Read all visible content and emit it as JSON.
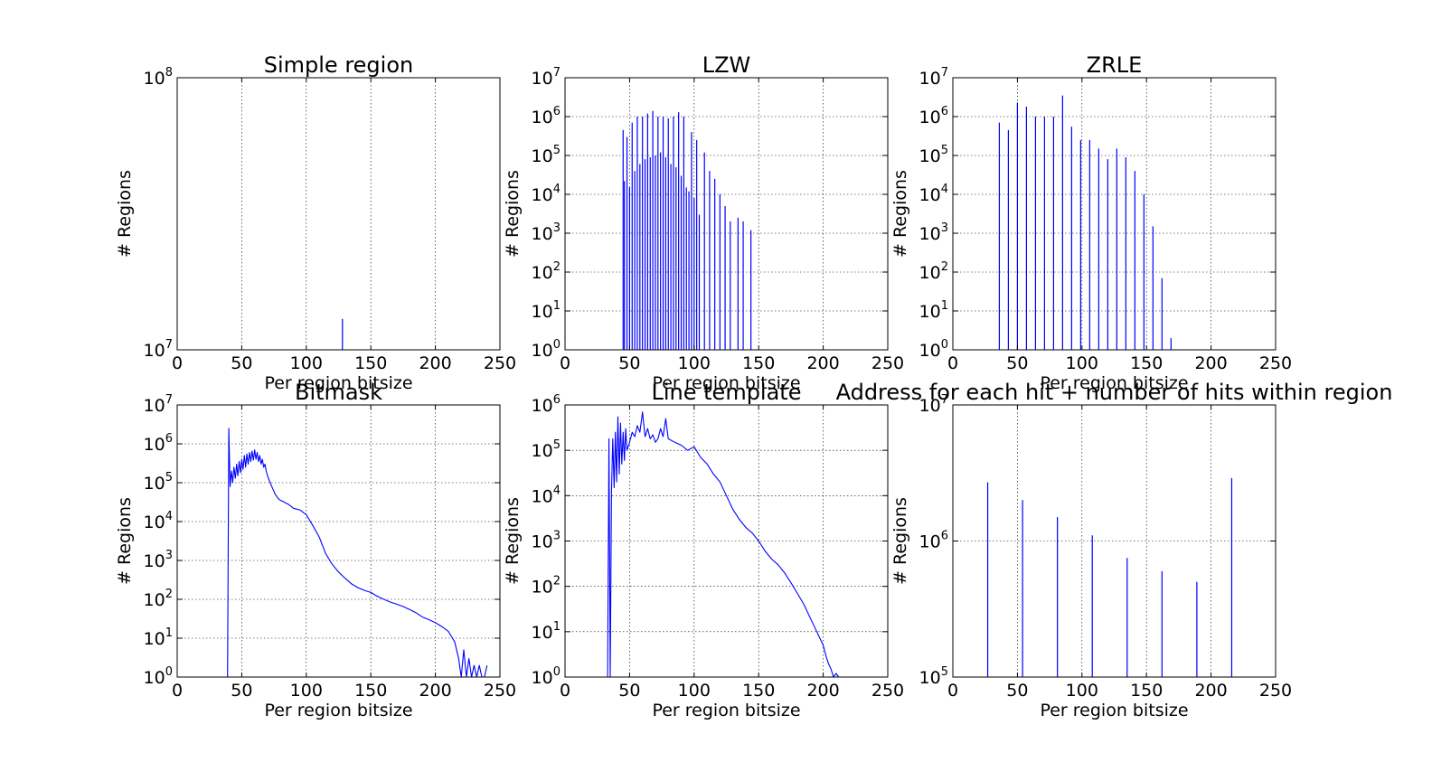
{
  "chart_data": [
    {
      "type": "bar",
      "title": "Simple region",
      "xlabel": "Per region bitsize",
      "ylabel": "# Regions",
      "xlim": [
        0,
        250
      ],
      "ylim": [
        10000000,
        100000000
      ],
      "yscale": "log",
      "xticks": [
        0,
        50,
        100,
        150,
        200,
        250
      ],
      "yticks": [
        10000000,
        100000000
      ],
      "ytick_labels": [
        {
          "base": "10",
          "exp": "7"
        },
        {
          "base": "10",
          "exp": "8"
        }
      ],
      "grid": true,
      "color": "#0000ff",
      "x": [
        128
      ],
      "y": [
        13000000
      ]
    },
    {
      "type": "bar",
      "title": "LZW",
      "xlabel": "Per region bitsize",
      "ylabel": "# Regions",
      "xlim": [
        0,
        250
      ],
      "ylim": [
        1,
        10000000
      ],
      "yscale": "log",
      "xticks": [
        0,
        50,
        100,
        150,
        200,
        250
      ],
      "yticks": [
        1,
        10,
        100,
        1000,
        10000,
        100000,
        1000000,
        10000000
      ],
      "ytick_labels": [
        {
          "base": "10",
          "exp": "0"
        },
        {
          "base": "10",
          "exp": "1"
        },
        {
          "base": "10",
          "exp": "2"
        },
        {
          "base": "10",
          "exp": "3"
        },
        {
          "base": "10",
          "exp": "4"
        },
        {
          "base": "10",
          "exp": "5"
        },
        {
          "base": "10",
          "exp": "6"
        },
        {
          "base": "10",
          "exp": "7"
        }
      ],
      "grid": true,
      "color": "#0000ff",
      "x": [
        45,
        46,
        48,
        50,
        52,
        54,
        56,
        58,
        60,
        62,
        64,
        66,
        68,
        70,
        72,
        74,
        76,
        78,
        80,
        82,
        84,
        86,
        88,
        90,
        92,
        94,
        96,
        98,
        100,
        102,
        104,
        108,
        112,
        116,
        120,
        124,
        128,
        134,
        138,
        144
      ],
      "y": [
        450000,
        22000,
        300000,
        15000,
        700000,
        40000,
        1000000,
        60000,
        1000000,
        80000,
        1200000,
        90000,
        1400000,
        100000,
        1000000,
        120000,
        1000000,
        90000,
        900000,
        60000,
        1000000,
        50000,
        1300000,
        30000,
        1000000,
        15000,
        12000,
        400000,
        8000,
        250000,
        3000,
        120000,
        40000,
        25000,
        10000,
        5000,
        2000,
        2500,
        2000,
        1200
      ]
    },
    {
      "type": "bar",
      "title": "ZRLE",
      "xlabel": "Per region bitsize",
      "ylabel": "# Regions",
      "xlim": [
        0,
        250
      ],
      "ylim": [
        1,
        10000000
      ],
      "yscale": "log",
      "xticks": [
        0,
        50,
        100,
        150,
        200,
        250
      ],
      "yticks": [
        1,
        10,
        100,
        1000,
        10000,
        100000,
        1000000,
        10000000
      ],
      "ytick_labels": [
        {
          "base": "10",
          "exp": "0"
        },
        {
          "base": "10",
          "exp": "1"
        },
        {
          "base": "10",
          "exp": "2"
        },
        {
          "base": "10",
          "exp": "3"
        },
        {
          "base": "10",
          "exp": "4"
        },
        {
          "base": "10",
          "exp": "5"
        },
        {
          "base": "10",
          "exp": "6"
        },
        {
          "base": "10",
          "exp": "7"
        }
      ],
      "grid": true,
      "color": "#0000ff",
      "x": [
        36,
        43,
        50,
        57,
        64,
        71,
        78,
        85,
        92,
        99,
        106,
        113,
        120,
        127,
        134,
        141,
        148,
        155,
        162,
        169
      ],
      "y": [
        700000,
        450000,
        2300000,
        1800000,
        1000000,
        1000000,
        1000000,
        3500000,
        550000,
        250000,
        250000,
        150000,
        80000,
        150000,
        90000,
        40000,
        10000,
        1500,
        70,
        2
      ]
    },
    {
      "type": "line",
      "title": "Bitmask",
      "xlabel": "Per region bitsize",
      "ylabel": "# Regions",
      "xlim": [
        0,
        250
      ],
      "ylim": [
        1,
        10000000
      ],
      "yscale": "log",
      "xticks": [
        0,
        50,
        100,
        150,
        200,
        250
      ],
      "yticks": [
        1,
        10,
        100,
        1000,
        10000,
        100000,
        1000000,
        10000000
      ],
      "ytick_labels": [
        {
          "base": "10",
          "exp": "0"
        },
        {
          "base": "10",
          "exp": "1"
        },
        {
          "base": "10",
          "exp": "2"
        },
        {
          "base": "10",
          "exp": "3"
        },
        {
          "base": "10",
          "exp": "4"
        },
        {
          "base": "10",
          "exp": "5"
        },
        {
          "base": "10",
          "exp": "6"
        },
        {
          "base": "10",
          "exp": "7"
        }
      ],
      "grid": true,
      "color": "#0000ff",
      "x": [
        39,
        40,
        41,
        42,
        43,
        44,
        45,
        46,
        47,
        48,
        49,
        50,
        51,
        52,
        53,
        54,
        55,
        56,
        57,
        58,
        59,
        60,
        61,
        62,
        63,
        64,
        65,
        66,
        67,
        68,
        69,
        70,
        72,
        74,
        76,
        78,
        80,
        82,
        84,
        86,
        88,
        90,
        95,
        100,
        105,
        110,
        115,
        120,
        125,
        130,
        135,
        140,
        145,
        150,
        155,
        160,
        165,
        170,
        175,
        180,
        185,
        190,
        195,
        200,
        205,
        210,
        215,
        218,
        220,
        222,
        224,
        226,
        228,
        230,
        232,
        234,
        236,
        238,
        240
      ],
      "y": [
        1,
        2500000,
        80000,
        200000,
        100000,
        250000,
        130000,
        300000,
        150000,
        350000,
        180000,
        400000,
        220000,
        500000,
        250000,
        550000,
        300000,
        600000,
        350000,
        650000,
        380000,
        700000,
        400000,
        600000,
        350000,
        500000,
        300000,
        400000,
        250000,
        300000,
        200000,
        150000,
        100000,
        70000,
        50000,
        40000,
        35000,
        33000,
        30000,
        28000,
        25000,
        22000,
        20000,
        15000,
        8000,
        4000,
        1500,
        800,
        500,
        350,
        250,
        200,
        170,
        150,
        120,
        100,
        85,
        75,
        65,
        55,
        45,
        35,
        30,
        25,
        20,
        15,
        8,
        3,
        1,
        5,
        1,
        3,
        1,
        2,
        1,
        2,
        1,
        1,
        2
      ]
    },
    {
      "type": "line",
      "title": "Line template",
      "xlabel": "Per region bitsize",
      "ylabel": "# Regions",
      "xlim": [
        0,
        250
      ],
      "ylim": [
        1,
        1000000
      ],
      "yscale": "log",
      "xticks": [
        0,
        50,
        100,
        150,
        200,
        250
      ],
      "yticks": [
        1,
        10,
        100,
        1000,
        10000,
        100000,
        1000000
      ],
      "ytick_labels": [
        {
          "base": "10",
          "exp": "0"
        },
        {
          "base": "10",
          "exp": "1"
        },
        {
          "base": "10",
          "exp": "2"
        },
        {
          "base": "10",
          "exp": "3"
        },
        {
          "base": "10",
          "exp": "4"
        },
        {
          "base": "10",
          "exp": "5"
        },
        {
          "base": "10",
          "exp": "6"
        }
      ],
      "grid": true,
      "color": "#0000ff",
      "x": [
        33,
        34,
        35,
        36,
        37,
        38,
        39,
        40,
        41,
        42,
        43,
        44,
        45,
        46,
        47,
        48,
        50,
        52,
        54,
        56,
        58,
        60,
        62,
        64,
        66,
        68,
        70,
        72,
        74,
        76,
        78,
        80,
        85,
        90,
        95,
        100,
        105,
        110,
        115,
        120,
        125,
        130,
        135,
        140,
        145,
        150,
        155,
        160,
        165,
        170,
        175,
        180,
        185,
        190,
        195,
        200,
        202,
        204,
        206,
        208,
        210,
        212
      ],
      "y": [
        1,
        180000,
        1,
        12000,
        180000,
        15000,
        250000,
        20000,
        550000,
        30000,
        400000,
        50000,
        250000,
        60000,
        300000,
        100000,
        150000,
        250000,
        200000,
        350000,
        250000,
        700000,
        200000,
        300000,
        180000,
        220000,
        150000,
        180000,
        300000,
        200000,
        500000,
        180000,
        150000,
        130000,
        100000,
        120000,
        70000,
        50000,
        30000,
        20000,
        10000,
        5000,
        3000,
        2000,
        1500,
        1000,
        600,
        400,
        300,
        200,
        120,
        70,
        40,
        20,
        10,
        5,
        3,
        2,
        1.5,
        1,
        1.2,
        1
      ]
    },
    {
      "type": "bar",
      "title": "Address for each hit + number of hits within region",
      "xlabel": "Per region bitsize",
      "ylabel": "# Regions",
      "xlim": [
        0,
        250
      ],
      "ylim": [
        100000,
        10000000
      ],
      "yscale": "log",
      "xticks": [
        0,
        50,
        100,
        150,
        200,
        250
      ],
      "yticks": [
        100000,
        1000000,
        10000000
      ],
      "ytick_labels": [
        {
          "base": "10",
          "exp": "5"
        },
        {
          "base": "10",
          "exp": "6"
        },
        {
          "base": "10",
          "exp": "7"
        }
      ],
      "grid": true,
      "color": "#0000ff",
      "x": [
        27,
        54,
        81,
        108,
        135,
        162,
        189,
        216
      ],
      "y": [
        2700000,
        2000000,
        1500000,
        1100000,
        750000,
        600000,
        500000,
        2900000
      ]
    }
  ]
}
